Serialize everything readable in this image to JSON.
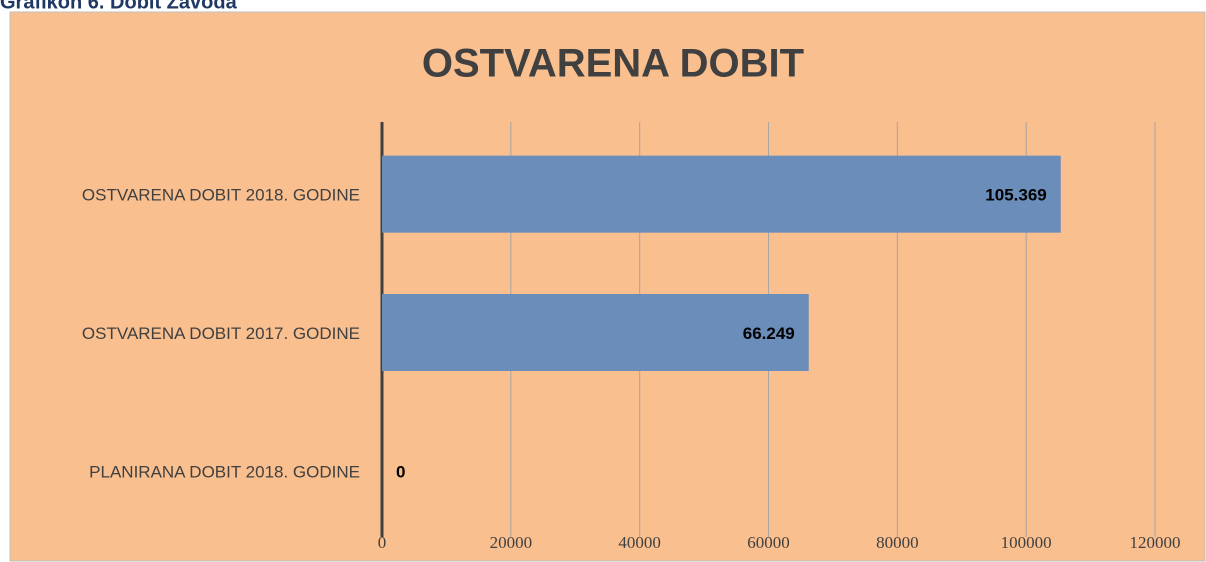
{
  "caption": "Grafikon 6. Dobit Zavoda",
  "chart_data": {
    "type": "barh",
    "title": "OSTVARENA DOBIT",
    "categories": [
      "OSTVARENA DOBIT 2018. GODINE",
      "OSTVARENA DOBIT 2017. GODINE",
      "PLANIRANA DOBIT 2018. GODINE"
    ],
    "values": [
      105369,
      66249,
      0
    ],
    "value_labels": [
      "105.369",
      "66.249",
      "0"
    ],
    "color": "#6a8dba",
    "xlim": [
      0,
      120000
    ],
    "xticks": [
      0,
      20000,
      40000,
      60000,
      80000,
      100000,
      120000
    ],
    "grid": true
  }
}
